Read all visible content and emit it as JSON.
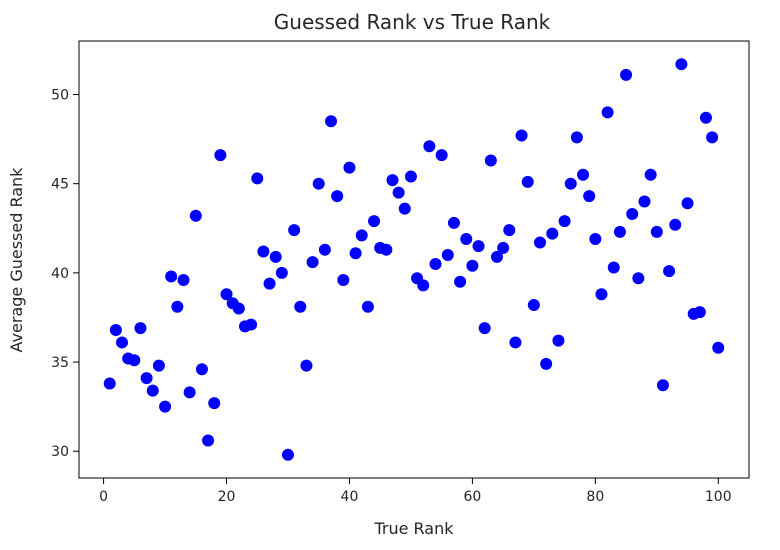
{
  "chart_data": {
    "type": "scatter",
    "title": "Guessed Rank vs True Rank",
    "xlabel": "True Rank",
    "ylabel": "Average Guessed Rank",
    "xlim": [
      -4,
      105
    ],
    "ylim": [
      28.5,
      53
    ],
    "xticks": [
      0,
      20,
      40,
      60,
      80,
      100
    ],
    "yticks": [
      30,
      35,
      40,
      45,
      50
    ],
    "grid": false,
    "marker_color": "#0000ff",
    "series": [
      {
        "x": [
          1,
          2,
          3,
          4,
          5,
          6,
          7,
          8,
          9,
          10,
          11,
          12,
          13,
          14,
          15,
          16,
          17,
          18,
          19,
          20,
          21,
          22,
          23,
          24,
          25,
          26,
          27,
          28,
          29,
          30,
          31,
          32,
          33,
          34,
          35,
          36,
          37,
          38,
          39,
          40,
          41,
          42,
          43,
          44,
          45,
          46,
          47,
          48,
          49,
          50,
          51,
          52,
          53,
          54,
          55,
          56,
          57,
          58,
          59,
          60,
          61,
          62,
          63,
          64,
          65,
          66,
          67,
          68,
          69,
          70,
          71,
          72,
          73,
          74,
          75,
          76,
          77,
          78,
          79,
          80,
          81,
          82,
          83,
          84,
          85,
          86,
          87,
          88,
          89,
          90,
          91,
          92,
          93,
          94,
          95,
          96,
          97,
          98,
          99,
          100
        ],
        "y": [
          33.8,
          36.8,
          36.1,
          35.2,
          35.1,
          36.9,
          34.1,
          33.4,
          34.8,
          32.5,
          39.8,
          38.1,
          39.6,
          33.3,
          43.2,
          34.6,
          30.6,
          32.7,
          46.6,
          38.8,
          38.3,
          38.0,
          37.0,
          37.1,
          45.3,
          41.2,
          39.4,
          40.9,
          40.0,
          29.8,
          42.4,
          38.1,
          34.8,
          40.6,
          45.0,
          41.3,
          48.5,
          44.3,
          39.6,
          45.9,
          41.1,
          42.1,
          38.1,
          42.9,
          41.4,
          41.3,
          45.2,
          44.5,
          43.6,
          45.4,
          39.7,
          39.3,
          47.1,
          40.5,
          46.6,
          41.0,
          42.8,
          39.5,
          41.9,
          40.4,
          41.5,
          36.9,
          46.3,
          40.9,
          41.4,
          42.4,
          36.1,
          47.7,
          45.1,
          38.2,
          41.7,
          34.9,
          42.2,
          36.2,
          42.9,
          45.0,
          47.6,
          45.5,
          44.3,
          41.9,
          38.8,
          49.0,
          40.3,
          42.3,
          51.1,
          43.3,
          39.7,
          44.0,
          45.5,
          42.3,
          33.7,
          40.1,
          42.7,
          51.7,
          43.9,
          37.7,
          37.8,
          48.7,
          47.6,
          35.8
        ]
      }
    ]
  }
}
